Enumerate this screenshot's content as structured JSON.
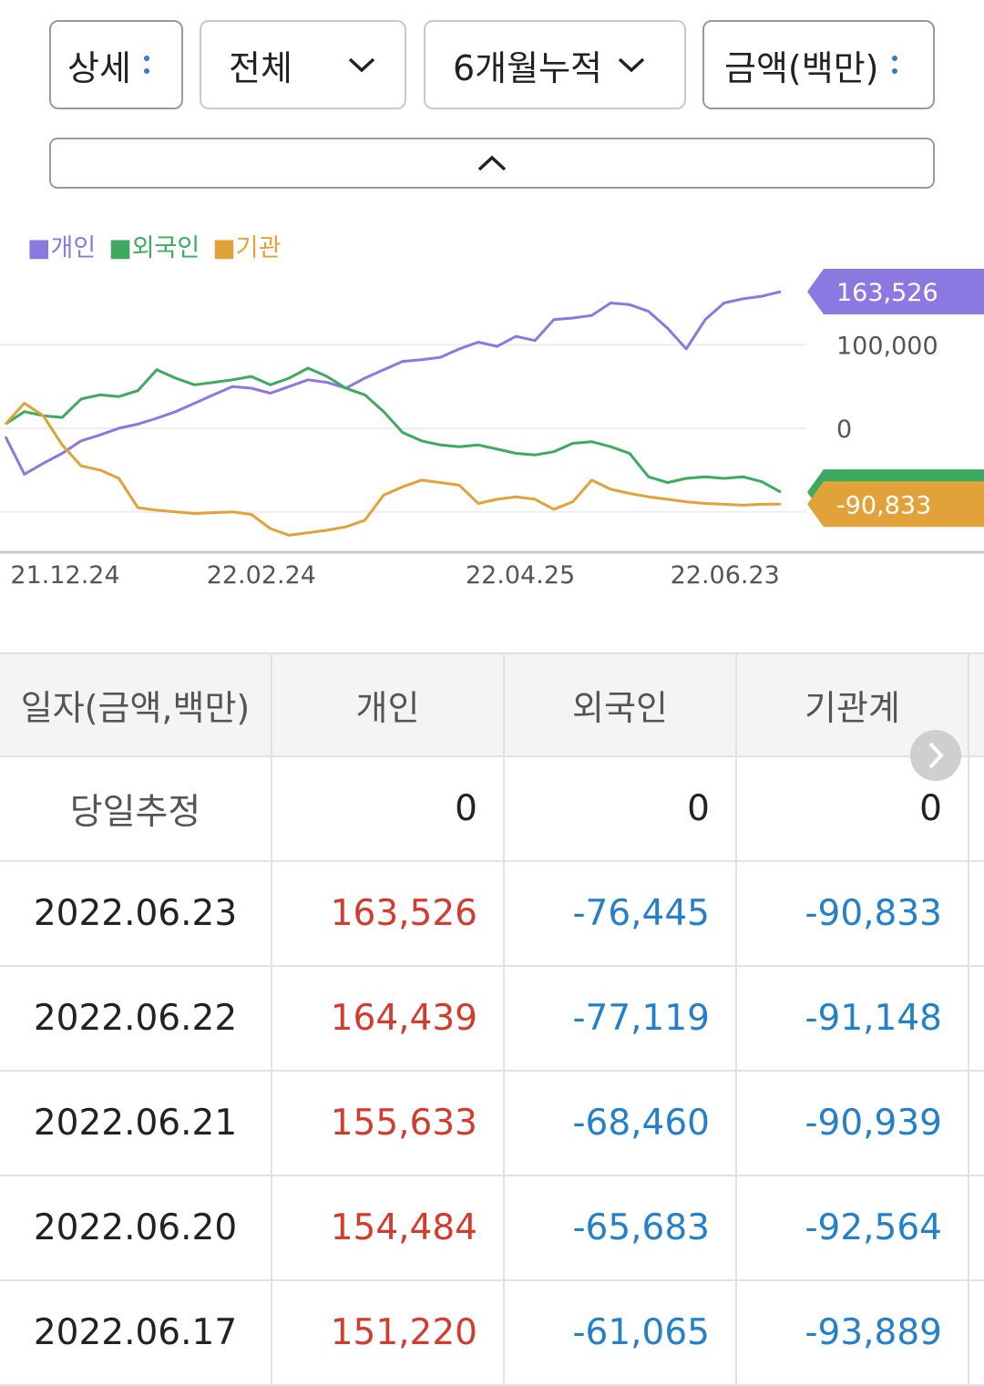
{
  "filters": {
    "detail": "상세",
    "scope": "전체",
    "period": "6개월누적",
    "unit": "금액(백만)"
  },
  "legend": {
    "individual": "개인",
    "foreign": "외국인",
    "institution": "기관"
  },
  "colors": {
    "individual": "#8b78e0",
    "foreign": "#3daa5f",
    "institution": "#e2a23a",
    "positive": "#d23b2e",
    "negative": "#2380c9"
  },
  "chart_data": {
    "type": "line",
    "x_ticks": [
      "21.12.24",
      "22.02.24",
      "22.04.25",
      "22.06.23"
    ],
    "y_ticks": [
      100000,
      0
    ],
    "y_tick_labels": [
      "100,000",
      "0"
    ],
    "ylim": [
      -200000,
      200000
    ],
    "end_labels": [
      "163,526",
      "-76,445",
      "-90,833"
    ],
    "series": [
      {
        "name": "개인",
        "color": "#8b78e0",
        "values": [
          -10000,
          -55000,
          -42000,
          -30000,
          -15000,
          -8000,
          0,
          5000,
          12000,
          20000,
          30000,
          40000,
          50000,
          48000,
          42000,
          50000,
          58000,
          55000,
          48000,
          60000,
          70000,
          80000,
          82000,
          85000,
          95000,
          103000,
          98000,
          110000,
          105000,
          130000,
          132000,
          135000,
          150000,
          148000,
          140000,
          120000,
          95000,
          130000,
          150000,
          155000,
          158000,
          163526
        ]
      },
      {
        "name": "외국인",
        "color": "#3daa5f",
        "values": [
          5000,
          20000,
          15000,
          13000,
          35000,
          40000,
          38000,
          45000,
          70000,
          60000,
          52000,
          55000,
          58000,
          62000,
          52000,
          60000,
          72000,
          62000,
          48000,
          40000,
          20000,
          -5000,
          -15000,
          -20000,
          -22000,
          -20000,
          -25000,
          -30000,
          -32000,
          -28000,
          -18000,
          -16000,
          -22000,
          -30000,
          -58000,
          -65000,
          -60000,
          -58000,
          -60000,
          -58000,
          -64000,
          -76445
        ]
      },
      {
        "name": "기관",
        "color": "#e2a23a",
        "values": [
          5000,
          30000,
          15000,
          -20000,
          -45000,
          -50000,
          -60000,
          -95000,
          -98000,
          -100000,
          -102000,
          -101000,
          -100000,
          -103000,
          -120000,
          -128000,
          -125000,
          -122000,
          -118000,
          -110000,
          -80000,
          -70000,
          -62000,
          -65000,
          -68000,
          -90000,
          -85000,
          -82000,
          -85000,
          -97000,
          -88000,
          -62000,
          -73000,
          -78000,
          -82000,
          -85000,
          -88000,
          -90000,
          -91000,
          -92000,
          -90939,
          -90833
        ]
      }
    ]
  },
  "table": {
    "headers": [
      "일자(금액,백만)",
      "개인",
      "외국인",
      "기관계"
    ],
    "rows": [
      {
        "date": "당일추정",
        "individual": "0",
        "foreign": "0",
        "institution": "0"
      },
      {
        "date": "2022.06.23",
        "individual": "163,526",
        "foreign": "-76,445",
        "institution": "-90,833"
      },
      {
        "date": "2022.06.22",
        "individual": "164,439",
        "foreign": "-77,119",
        "institution": "-91,148"
      },
      {
        "date": "2022.06.21",
        "individual": "155,633",
        "foreign": "-68,460",
        "institution": "-90,939"
      },
      {
        "date": "2022.06.20",
        "individual": "154,484",
        "foreign": "-65,683",
        "institution": "-92,564"
      },
      {
        "date": "2022.06.17",
        "individual": "151,220",
        "foreign": "-61,065",
        "institution": "-93,889"
      }
    ]
  }
}
